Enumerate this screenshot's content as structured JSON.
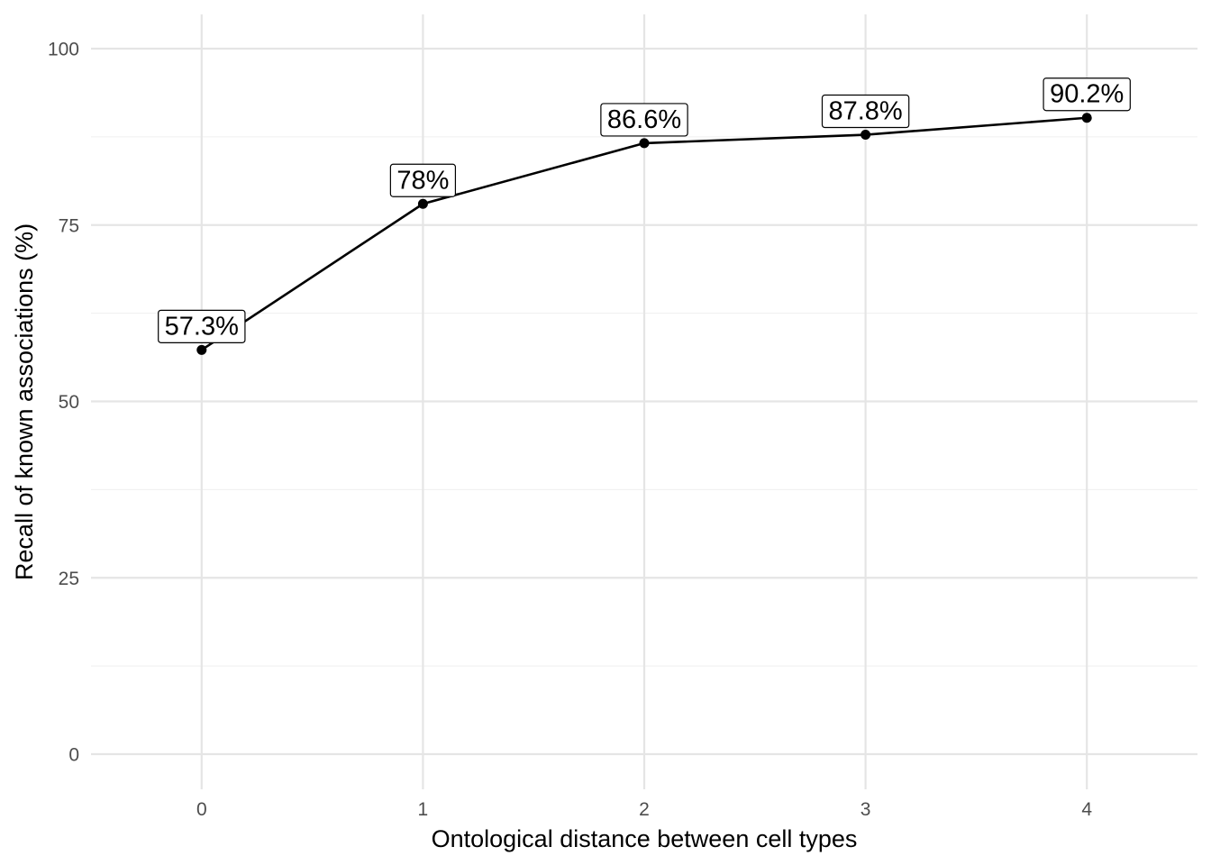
{
  "chart_data": {
    "type": "line",
    "xlabel": "Ontological distance between cell types",
    "ylabel": "Recall of known associations (%)",
    "x": [
      0,
      1,
      2,
      3,
      4
    ],
    "xlim": [
      -0.5,
      4.5
    ],
    "ylim": [
      0,
      100
    ],
    "x_ticks": [
      "0",
      "1",
      "2",
      "3",
      "4"
    ],
    "y_ticks": [
      "0",
      "25",
      "50",
      "75",
      "100"
    ],
    "y_minor_ticks": [
      12.5,
      37.5,
      62.5,
      87.5
    ],
    "grid": true,
    "legend": "none",
    "series": [
      {
        "values": [
          57.3,
          78.0,
          86.6,
          87.8,
          90.2
        ],
        "labels": [
          "57.3%",
          "78%",
          "86.6%",
          "87.8%",
          "90.2%"
        ],
        "color": "#000000"
      }
    ]
  }
}
